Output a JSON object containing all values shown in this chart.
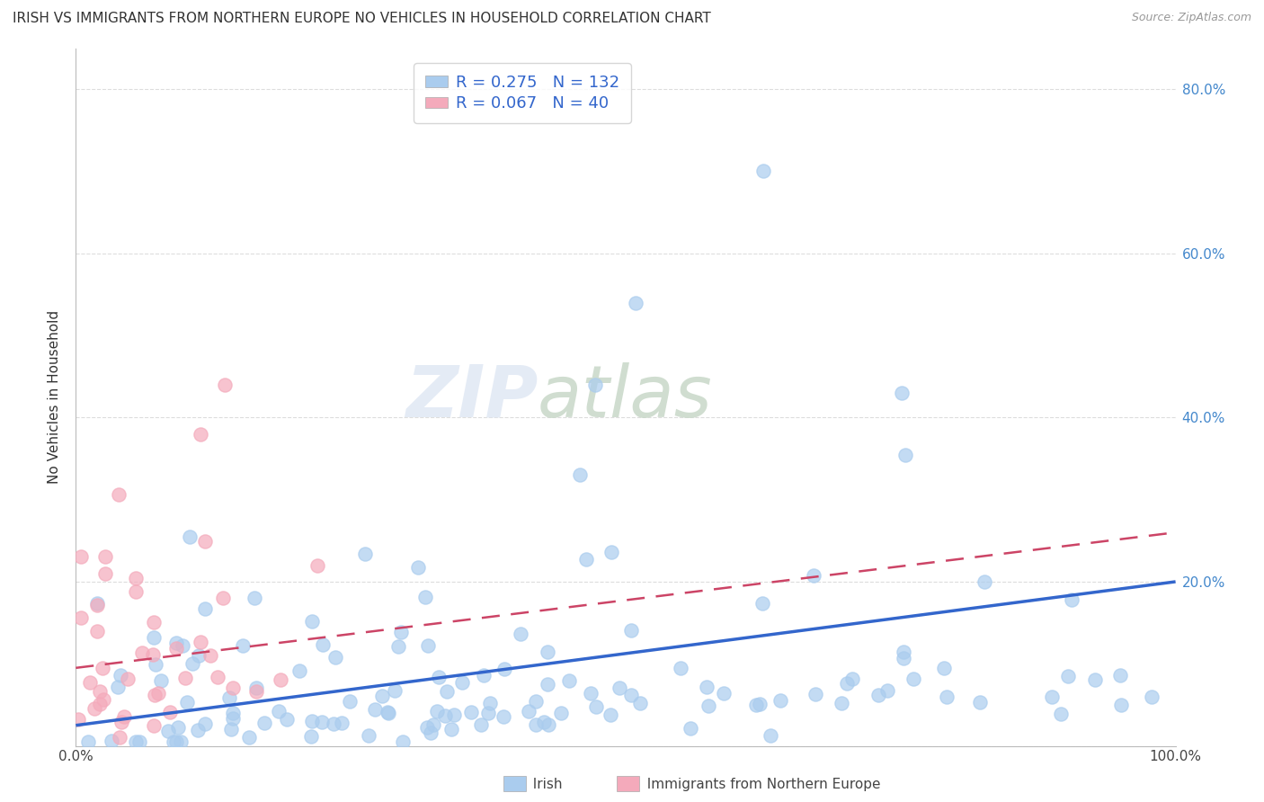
{
  "title": "IRISH VS IMMIGRANTS FROM NORTHERN EUROPE NO VEHICLES IN HOUSEHOLD CORRELATION CHART",
  "source": "Source: ZipAtlas.com",
  "ylabel": "No Vehicles in Household",
  "xlim": [
    0.0,
    1.0
  ],
  "ylim": [
    0.0,
    0.85
  ],
  "x_ticks": [
    0.0,
    1.0
  ],
  "x_tick_labels": [
    "0.0%",
    "100.0%"
  ],
  "y_ticks": [
    0.0,
    0.2,
    0.4,
    0.6,
    0.8
  ],
  "y_tick_labels_right": [
    "",
    "20.0%",
    "40.0%",
    "60.0%",
    "80.0%"
  ],
  "irish_R": 0.275,
  "irish_N": 132,
  "imm_R": 0.067,
  "imm_N": 40,
  "irish_color": "#aaccee",
  "imm_color": "#f4aabb",
  "irish_line_color": "#3366cc",
  "imm_line_color": "#cc4466",
  "watermark_zip": "ZIP",
  "watermark_atlas": "atlas",
  "grid_color": "#dddddd",
  "irish_line_start_y": 0.025,
  "irish_line_end_y": 0.2,
  "imm_line_start_y": 0.095,
  "imm_line_end_y": 0.26
}
